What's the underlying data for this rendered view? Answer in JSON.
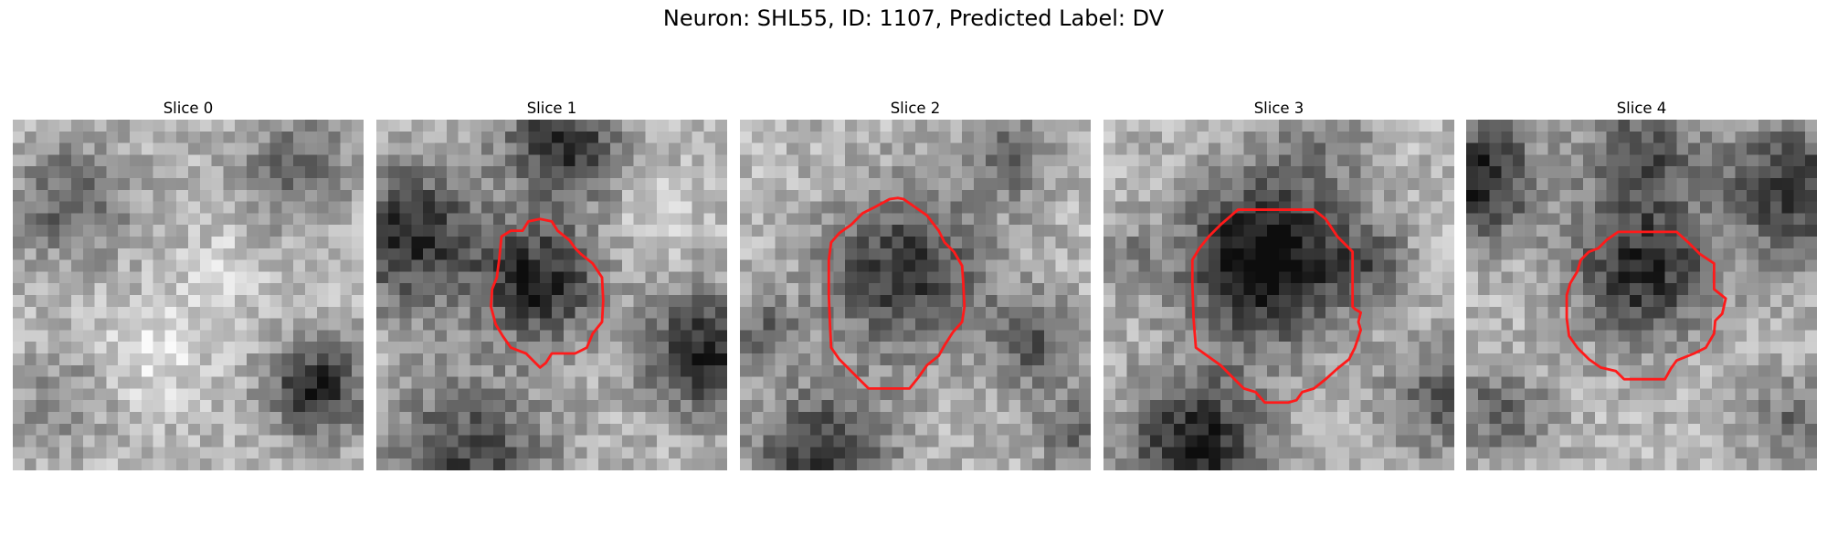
{
  "figure": {
    "title": "Neuron: SHL55, ID: 1107, Predicted Label: DV",
    "outline_color": "#ff1a1a",
    "colormap": "gray"
  },
  "panels": [
    {
      "title": "Slice 0",
      "has_outline": false
    },
    {
      "title": "Slice 1",
      "has_outline": true
    },
    {
      "title": "Slice 2",
      "has_outline": true
    },
    {
      "title": "Slice 3",
      "has_outline": true
    },
    {
      "title": "Slice 4",
      "has_outline": true
    }
  ]
}
